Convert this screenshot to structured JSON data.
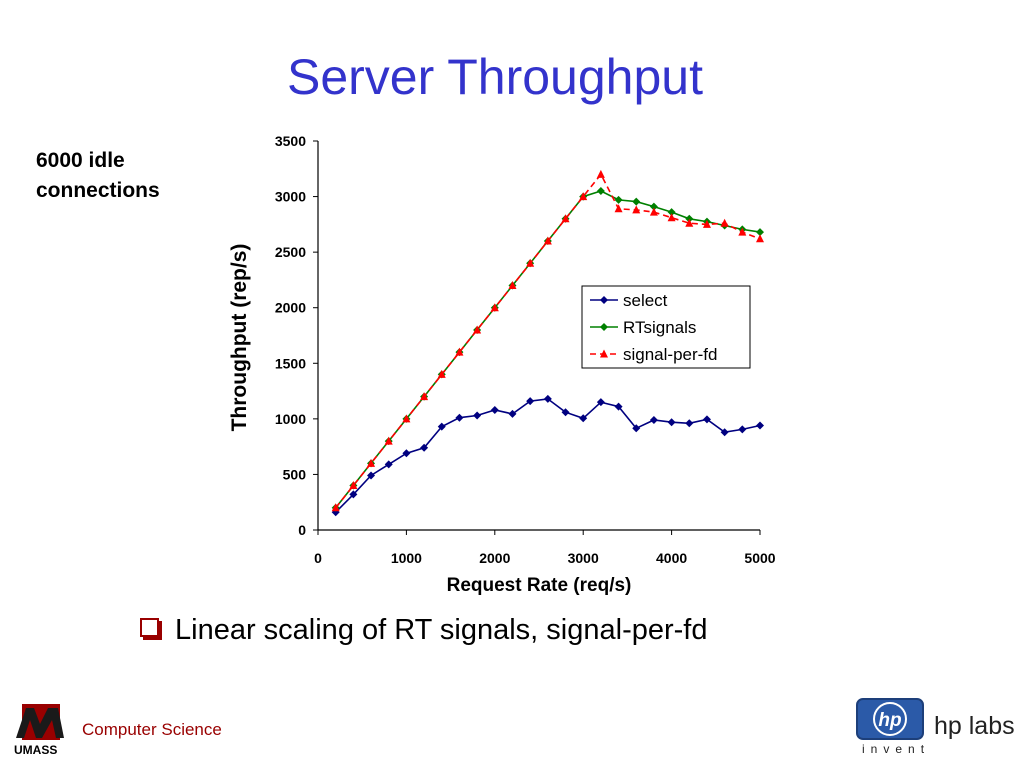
{
  "slide": {
    "title": "Server Throughput",
    "side_note_lines": [
      "6000 idle",
      "connections"
    ],
    "bullet": "Linear scaling of RT signals, signal-per-fd",
    "footer_left_text": "Computer Science",
    "footer_left_logo_text": "UMASS",
    "footer_right_text": "hp labs",
    "footer_right_tagline": "invent",
    "footer_right_logo_text": "hp"
  },
  "colors": {
    "title": "#3333cc",
    "select": "#000080",
    "RTsignals": "#008000",
    "signal-per-fd": "#ff0000",
    "accent": "#990000"
  },
  "chart_data": {
    "type": "line",
    "xlabel": "Request Rate (req/s)",
    "ylabel": "Throughput (rep/s)",
    "xlim": [
      0,
      5000
    ],
    "ylim": [
      0,
      3500
    ],
    "xticks": [
      0,
      1000,
      2000,
      3000,
      4000,
      5000
    ],
    "yticks": [
      0,
      500,
      1000,
      1500,
      2000,
      2500,
      3000,
      3500
    ],
    "grid": false,
    "legend_position": "right",
    "x": [
      200,
      400,
      600,
      800,
      1000,
      1200,
      1400,
      1600,
      1800,
      2000,
      2200,
      2400,
      2600,
      2800,
      3000,
      3200,
      3400,
      3600,
      3800,
      4000,
      4200,
      4400,
      4600,
      4800,
      5000
    ],
    "series": [
      {
        "name": "select",
        "marker": "diamond",
        "dash": false,
        "values": [
          160,
          320,
          490,
          590,
          690,
          740,
          930,
          1010,
          1030,
          1080,
          1045,
          1160,
          1180,
          1060,
          1005,
          1150,
          1110,
          915,
          990,
          970,
          960,
          995,
          880,
          905,
          940
        ]
      },
      {
        "name": "RTsignals",
        "marker": "diamond",
        "dash": false,
        "values": [
          200,
          400,
          600,
          800,
          1000,
          1200,
          1400,
          1600,
          1800,
          2000,
          2200,
          2400,
          2600,
          2800,
          3000,
          3050,
          2970,
          2955,
          2910,
          2860,
          2800,
          2775,
          2740,
          2705,
          2680
        ]
      },
      {
        "name": "signal-per-fd",
        "marker": "triangle",
        "dash": true,
        "values": [
          200,
          400,
          600,
          800,
          1000,
          1200,
          1400,
          1600,
          1800,
          2000,
          2200,
          2400,
          2600,
          2800,
          3000,
          3200,
          2890,
          2880,
          2860,
          2810,
          2760,
          2750,
          2760,
          2680,
          2620
        ]
      }
    ]
  }
}
